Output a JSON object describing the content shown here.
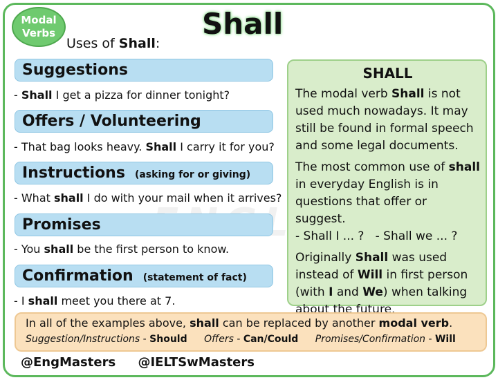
{
  "badge": {
    "line1": "Modal",
    "line2": "Verbs"
  },
  "title": "Shall",
  "subtitle": {
    "prefix": "Uses of ",
    "bold": "Shall",
    "suffix": ":"
  },
  "uses": [
    {
      "label": "Suggestions",
      "note": "",
      "example": {
        "pre": "- ",
        "bold": "Shall",
        "post": " I get a pizza for dinner tonight?"
      }
    },
    {
      "label": "Offers / Volunteering",
      "note": "",
      "example": {
        "pre": "- That bag looks heavy. ",
        "bold": "Shall",
        "post": " I carry it for you?"
      }
    },
    {
      "label": "Instructions",
      "note": "(asking for or giving)",
      "example": {
        "pre": "- What ",
        "bold": "shall",
        "post": " I do with your mail when it arrives?"
      }
    },
    {
      "label": "Promises",
      "note": "",
      "example": {
        "pre": "- You ",
        "bold": "shall",
        "post": " be the first person to know."
      }
    },
    {
      "label": "Confirmation",
      "note": "(statement of fact)",
      "example": {
        "pre": "- I ",
        "bold": "shall",
        "post": " meet you there at 7."
      }
    }
  ],
  "info": {
    "title": "SHALL",
    "p1": {
      "a": "The modal verb ",
      "b": "Shall",
      "c": " is not used much nowadays. It may still be found in formal speech and some legal documents."
    },
    "p2": {
      "a": "The most common use of ",
      "b": "shall",
      "c": " in everyday English is in questions that offer or suggest.",
      "d": "- Shall I ... ?   - Shall we ... ?"
    },
    "p3": {
      "a": "Originally ",
      "b": "Shall",
      "c": " was used instead of ",
      "d": "Will",
      "e": " in first person (with ",
      "f": "I",
      "g": " and ",
      "h": "We",
      "i": ") when talking about the future."
    }
  },
  "summary": {
    "line": {
      "a": "In all of the examples above, ",
      "b": "shall",
      "c": " can be replaced by another ",
      "d": "modal verb",
      "e": "."
    },
    "subs": [
      {
        "label": "Suggestion/Instructions",
        "sep": " - ",
        "verb": "Should"
      },
      {
        "label": "Offers",
        "sep": " - ",
        "verb": "Can/Could"
      },
      {
        "label": "Promises/Confirmation",
        "sep": " - ",
        "verb": "Will"
      }
    ]
  },
  "handles": [
    "@EngMasters",
    "@IELTSwMasters"
  ]
}
